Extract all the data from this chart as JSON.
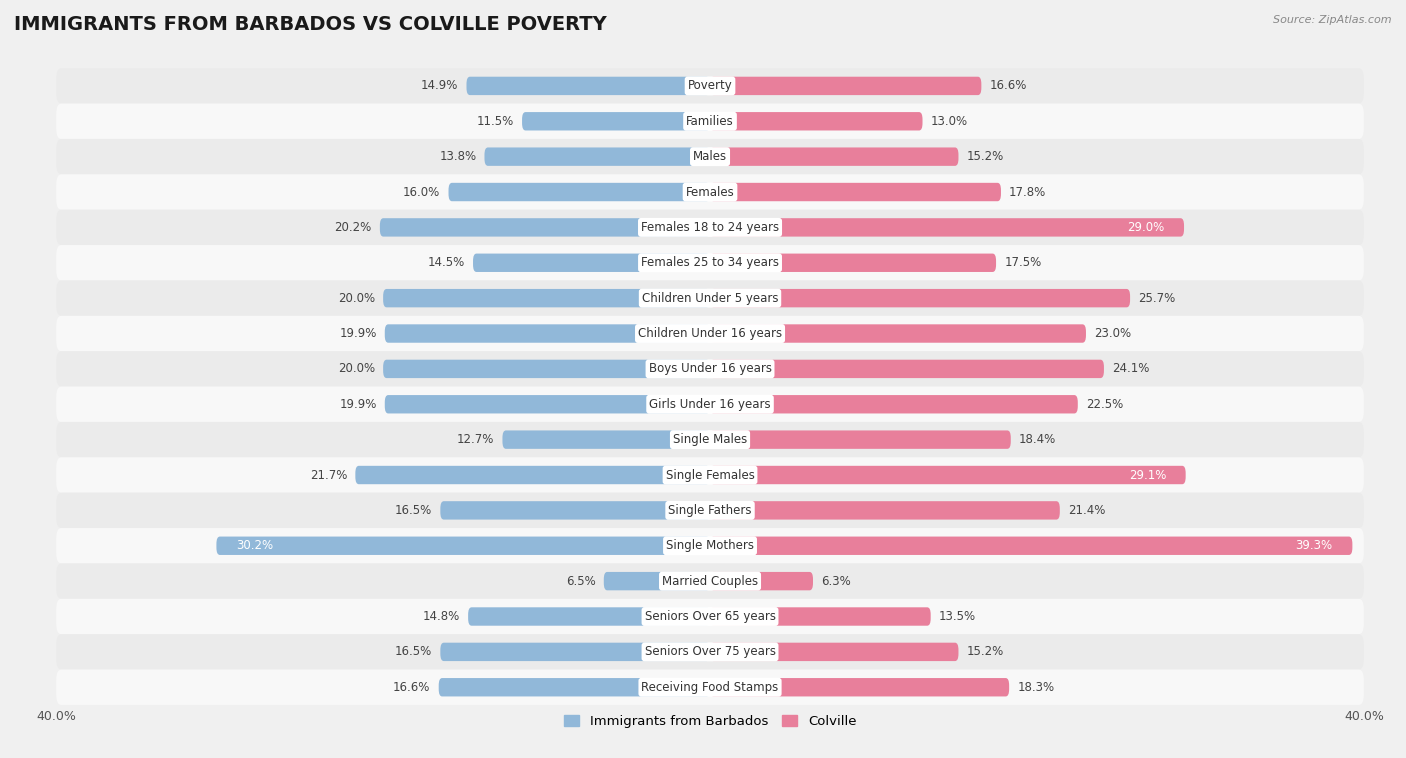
{
  "title": "IMMIGRANTS FROM BARBADOS VS COLVILLE POVERTY",
  "source": "Source: ZipAtlas.com",
  "categories": [
    "Poverty",
    "Families",
    "Males",
    "Females",
    "Females 18 to 24 years",
    "Females 25 to 34 years",
    "Children Under 5 years",
    "Children Under 16 years",
    "Boys Under 16 years",
    "Girls Under 16 years",
    "Single Males",
    "Single Females",
    "Single Fathers",
    "Single Mothers",
    "Married Couples",
    "Seniors Over 65 years",
    "Seniors Over 75 years",
    "Receiving Food Stamps"
  ],
  "barbados_values": [
    14.9,
    11.5,
    13.8,
    16.0,
    20.2,
    14.5,
    20.0,
    19.9,
    20.0,
    19.9,
    12.7,
    21.7,
    16.5,
    30.2,
    6.5,
    14.8,
    16.5,
    16.6
  ],
  "colville_values": [
    16.6,
    13.0,
    15.2,
    17.8,
    29.0,
    17.5,
    25.7,
    23.0,
    24.1,
    22.5,
    18.4,
    29.1,
    21.4,
    39.3,
    6.3,
    13.5,
    15.2,
    18.3
  ],
  "barbados_color": "#91b8d9",
  "colville_color": "#e87f9b",
  "row_colors": [
    "#ebebeb",
    "#f8f8f8"
  ],
  "background_color": "#f0f0f0",
  "xlim": 40.0,
  "bar_height": 0.52,
  "legend_labels": [
    "Immigrants from Barbados",
    "Colville"
  ],
  "title_fontsize": 14,
  "label_fontsize": 8.5,
  "value_fontsize": 8.5,
  "axis_fontsize": 9
}
